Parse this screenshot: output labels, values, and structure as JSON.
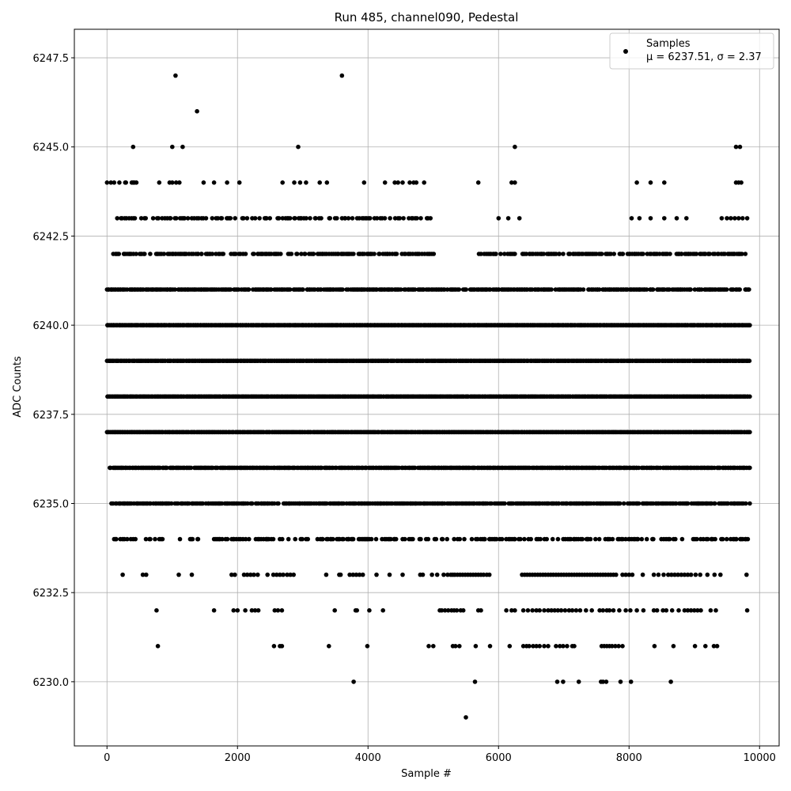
{
  "chart_data": {
    "type": "scatter",
    "title": "Run 485, channel090, Pedestal",
    "xlabel": "Sample #",
    "ylabel": "ADC Counts",
    "xlim": [
      -500,
      10300
    ],
    "ylim": [
      6228.2,
      6248.3
    ],
    "xticks": [
      0,
      2000,
      4000,
      6000,
      8000,
      10000
    ],
    "yticks": [
      6230.0,
      6232.5,
      6235.0,
      6237.5,
      6240.0,
      6242.5,
      6245.0,
      6247.5
    ],
    "grid": true,
    "legend": {
      "placement": "top-right",
      "series_name": "Samples",
      "stats_line": "μ = 6237.51, σ = 2.37",
      "marker_color": "#000000"
    },
    "series": [
      {
        "name": "Samples",
        "color": "#000000",
        "density_bands": [
          {
            "y": 6229,
            "points": [
              5500
            ]
          },
          {
            "y": 6230,
            "points": [
              3780,
              5640,
              6900,
              6990,
              7230,
              7570,
              7600,
              7650,
              7870,
              8030,
              8640
            ]
          },
          {
            "y": 6231,
            "points": [
              780,
              2560,
              2650,
              2680,
              3400,
              3990,
              4930,
              5000,
              5300,
              5340,
              5400,
              5650,
              5870,
              6170,
              6380,
              6430,
              6470,
              6530,
              6580,
              6630,
              6700,
              6760,
              6880,
              6940,
              6990,
              7050,
              7130,
              7160,
              7580,
              7620,
              7660,
              7700,
              7740,
              7790,
              7840,
              7900,
              8390,
              8680,
              9010,
              9170,
              9300,
              9350
            ]
          },
          {
            "y": 6232,
            "points": [
              760,
              1640,
              1940,
              2000,
              2120,
              2220,
              2270,
              2320,
              2570,
              2620,
              2680,
              3490,
              3810,
              3830,
              4020,
              4230,
              5100,
              5130,
              5180,
              5230,
              5280,
              5320,
              5360,
              5420,
              5460,
              5690,
              5730,
              6120,
              6200,
              6250,
              6380,
              6450,
              6520,
              6580,
              6630,
              6700,
              6760,
              6810,
              6860,
              6910,
              6960,
              7020,
              7080,
              7130,
              7190,
              7250,
              7340,
              7430,
              7550,
              7600,
              7660,
              7700,
              7760,
              7850,
              7950,
              8020,
              8120,
              8220,
              8380,
              8430,
              8520,
              8570,
              8660,
              8760,
              8850,
              8900,
              8950,
              9000,
              9050,
              9100,
              9250,
              9330,
              9810
            ]
          },
          {
            "y": 6233,
            "points": [
              240,
              550,
              600,
              1100,
              1300,
              1910,
              1960,
              2100,
              2150,
              2200,
              2250,
              2310,
              2460,
              2550,
              2600,
              2650,
              2700,
              2760,
              2810,
              2860,
              3360,
              3560,
              3580,
              3720,
              3770,
              3820,
              3870,
              3920,
              4130,
              4330,
              4530,
              4800,
              4840,
              4980,
              5060,
              5160,
              5220,
              5270,
              5300,
              5330,
              5370,
              5410,
              5450,
              5490,
              5530,
              5570,
              5610,
              5650,
              5690,
              5730,
              5770,
              5820,
              5860,
              6360,
              6400,
              6440,
              6480,
              6520,
              6560,
              6600,
              6640,
              6680,
              6720,
              6760,
              6800,
              6840,
              6880,
              6920,
              6960,
              7000,
              7040,
              7080,
              7120,
              7160,
              7200,
              7240,
              7280,
              7320,
              7360,
              7400,
              7440,
              7480,
              7520,
              7560,
              7600,
              7640,
              7680,
              7720,
              7760,
              7800,
              7900,
              7950,
              8000,
              8050,
              8210,
              8380,
              8450,
              8530,
              8600,
              8650,
              8700,
              8750,
              8800,
              8850,
              8900,
              8950,
              9020,
              9090,
              9200,
              9310,
              9400,
              9800
            ]
          },
          {
            "y": 6234,
            "density": 0.45,
            "fill_intervals": [
              [
                110,
                450
              ],
              [
                580,
                850
              ],
              [
                1110,
                1400
              ],
              [
                1640,
                9840
              ]
            ]
          },
          {
            "y": 6235,
            "density": 0.8,
            "fill_intervals": [
              [
                0,
                9850
              ]
            ]
          },
          {
            "y": 6236,
            "density": 0.9,
            "fill_intervals": [
              [
                40,
                9850
              ]
            ]
          },
          {
            "y": 6237,
            "density": 1.0,
            "fill_intervals": [
              [
                0,
                9850
              ]
            ]
          },
          {
            "y": 6238,
            "density": 1.0,
            "fill_intervals": [
              [
                0,
                9850
              ]
            ]
          },
          {
            "y": 6239,
            "density": 1.0,
            "fill_intervals": [
              [
                0,
                9850
              ]
            ]
          },
          {
            "y": 6240,
            "density": 1.0,
            "fill_intervals": [
              [
                0,
                9850
              ]
            ]
          },
          {
            "y": 6241,
            "density": 0.8,
            "fill_intervals": [
              [
                0,
                9850
              ]
            ]
          },
          {
            "y": 6242,
            "density": 0.6,
            "fill_intervals": [
              [
                0,
                5050
              ],
              [
                5680,
                9800
              ]
            ]
          },
          {
            "y": 6243,
            "density": 0.4,
            "fill_intervals": [
              [
                20,
                4960
              ]
            ],
            "points": [
              6000,
              6150,
              6320,
              8040,
              8160,
              8330,
              8540,
              8730,
              8880,
              9420,
              9500,
              9560,
              9620,
              9680,
              9740,
              9810
            ]
          },
          {
            "y": 6244,
            "points": [
              0,
              60,
              110,
              190,
              280,
              290,
              380,
              400,
              420,
              450,
              800,
              960,
              1000,
              1060,
              1110,
              1480,
              1640,
              1840,
              2030,
              2690,
              2870,
              2960,
              3050,
              3260,
              3370,
              3940,
              4260,
              4410,
              4460,
              4530,
              4640,
              4700,
              4740,
              4860,
              5690,
              6200,
              6250,
              8120,
              8330,
              8540,
              9640,
              9680,
              9720
            ]
          },
          {
            "y": 6245,
            "points": [
              400,
              1000,
              1160,
              2930,
              6250,
              9640,
              9700
            ]
          },
          {
            "y": 6246,
            "points": [
              1380
            ]
          },
          {
            "y": 6247,
            "points": [
              1050,
              3600
            ]
          }
        ]
      }
    ]
  }
}
